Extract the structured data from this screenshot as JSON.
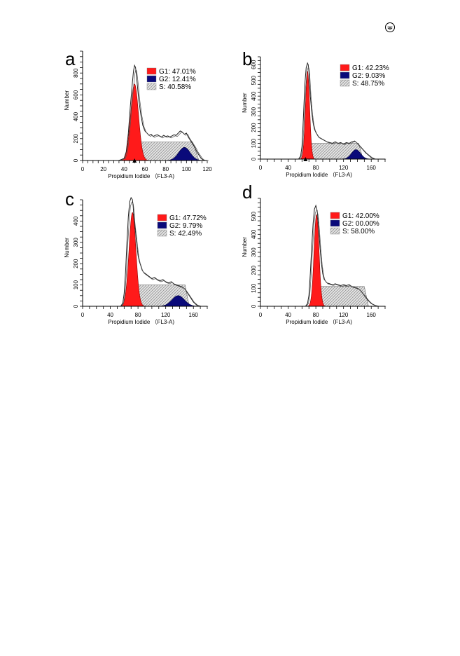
{
  "chart_data": [
    {
      "panel_label": "a",
      "type": "area",
      "xlabel": "Propidium Iodide （FL3-A)",
      "ylabel": "Number",
      "xlim": [
        0,
        120
      ],
      "ylim": [
        0,
        1000
      ],
      "x_ticks": [
        0,
        20,
        40,
        60,
        80,
        100,
        120
      ],
      "y_ticks": [
        0,
        200,
        400,
        600,
        800
      ],
      "legend": [
        {
          "name": "G1",
          "text": "G1: 47.01%",
          "value": 47.01,
          "color": "#ff1a1a"
        },
        {
          "name": "G2",
          "text": "G2: 12.41%",
          "value": 12.41,
          "color": "#0a0a7a"
        },
        {
          "name": "S",
          "text": "S: 40.58%",
          "value": 40.58,
          "color": "hatch"
        }
      ],
      "marker_x": 50,
      "total": {
        "x": [
          0,
          35,
          40,
          42,
          44,
          46,
          48,
          49,
          50,
          51,
          52,
          54,
          56,
          58,
          60,
          62,
          64,
          66,
          68,
          70,
          72,
          74,
          76,
          78,
          80,
          82,
          84,
          86,
          88,
          90,
          92,
          94,
          96,
          98,
          100,
          102,
          104,
          106,
          108,
          110,
          112,
          114,
          116,
          118,
          120
        ],
        "y": [
          0,
          0,
          20,
          80,
          250,
          500,
          720,
          820,
          870,
          850,
          760,
          560,
          420,
          320,
          270,
          250,
          230,
          240,
          220,
          230,
          235,
          225,
          215,
          230,
          220,
          225,
          215,
          225,
          235,
          230,
          250,
          270,
          260,
          240,
          250,
          210,
          180,
          150,
          120,
          80,
          50,
          20,
          5,
          0,
          0
        ]
      },
      "g1": {
        "center": 50,
        "sd": 3.8,
        "height": 700
      },
      "g2": {
        "center": 98,
        "sd": 5.5,
        "height": 120
      },
      "s": {
        "start": 52,
        "end": 106,
        "level": 170
      }
    },
    {
      "panel_label": "b",
      "type": "area",
      "xlabel": "Propidium Iodide （FL3-A)",
      "ylabel": "Number",
      "xlim": [
        0,
        180
      ],
      "ylim": [
        0,
        650
      ],
      "x_ticks": [
        0,
        40,
        80,
        120,
        160
      ],
      "y_ticks": [
        0,
        100,
        200,
        300,
        400,
        500,
        600
      ],
      "legend": [
        {
          "name": "G1",
          "text": "G1: 42.23%",
          "value": 42.23,
          "color": "#ff1a1a"
        },
        {
          "name": "G2",
          "text": "G2: 9.03%",
          "value": 9.03,
          "color": "#0a0a7a"
        },
        {
          "name": "S",
          "text": "S: 48.75%",
          "value": 48.75,
          "color": "hatch"
        }
      ],
      "marker_x": 65,
      "total": {
        "x": [
          0,
          55,
          58,
          60,
          62,
          64,
          66,
          68,
          69,
          70,
          71,
          72,
          74,
          76,
          78,
          80,
          84,
          88,
          92,
          96,
          100,
          104,
          108,
          112,
          116,
          120,
          124,
          128,
          132,
          136,
          140,
          144,
          148,
          152,
          156,
          160,
          165,
          180
        ],
        "y": [
          0,
          0,
          20,
          80,
          260,
          470,
          580,
          610,
          600,
          560,
          480,
          400,
          300,
          230,
          190,
          170,
          140,
          130,
          120,
          110,
          105,
          100,
          110,
          100,
          105,
          95,
          105,
          100,
          110,
          115,
          100,
          80,
          60,
          40,
          25,
          10,
          0,
          0
        ]
      },
      "g1": {
        "center": 68,
        "sd": 3.0,
        "height": 560
      },
      "g2": {
        "center": 138,
        "sd": 6.5,
        "height": 60
      },
      "s": {
        "start": 70,
        "end": 142,
        "level": 100
      }
    },
    {
      "panel_label": "c",
      "type": "area",
      "xlabel": "Propidium Iodide （FL3-A)",
      "ylabel": "Number",
      "xlim": [
        0,
        180
      ],
      "ylim": [
        0,
        500
      ],
      "x_ticks": [
        0,
        40,
        80,
        120,
        160
      ],
      "y_ticks": [
        0,
        100,
        200,
        300,
        400
      ],
      "legend": [
        {
          "name": "G1",
          "text": "G1: 47.72%",
          "value": 47.72,
          "color": "#ff1a1a"
        },
        {
          "name": "G2",
          "text": "G2: 9.79%",
          "value": 9.79,
          "color": "#0a0a7a"
        },
        {
          "name": "S",
          "text": "S: 42.49%",
          "value": 42.49,
          "color": "hatch"
        }
      ],
      "marker_x": null,
      "total": {
        "x": [
          0,
          55,
          58,
          60,
          62,
          64,
          66,
          68,
          70,
          72,
          73,
          74,
          76,
          78,
          80,
          82,
          84,
          86,
          88,
          92,
          96,
          100,
          104,
          108,
          112,
          116,
          120,
          124,
          128,
          132,
          136,
          140,
          144,
          148,
          152,
          156,
          160,
          165,
          170,
          180
        ],
        "y": [
          0,
          0,
          15,
          60,
          160,
          300,
          420,
          490,
          510,
          500,
          470,
          420,
          360,
          300,
          240,
          210,
          190,
          170,
          160,
          150,
          140,
          130,
          135,
          125,
          120,
          125,
          115,
          110,
          115,
          105,
          100,
          95,
          90,
          80,
          60,
          40,
          20,
          5,
          0,
          0
        ]
      },
      "g1": {
        "center": 72,
        "sd": 5.0,
        "height": 440
      },
      "g2": {
        "center": 138,
        "sd": 9.0,
        "height": 50
      },
      "s": {
        "start": 74,
        "end": 148,
        "level": 100
      }
    },
    {
      "panel_label": "d",
      "type": "area",
      "xlabel": "Propidium Iodide （FL3-A)",
      "ylabel": "Number",
      "xlim": [
        0,
        180
      ],
      "ylim": [
        0,
        600
      ],
      "x_ticks": [
        0,
        40,
        80,
        120,
        160
      ],
      "y_ticks": [
        0,
        100,
        200,
        300,
        400,
        500
      ],
      "legend": [
        {
          "name": "G1",
          "text": "G1: 42.00%",
          "value": 42.0,
          "color": "#ff1a1a"
        },
        {
          "name": "G2",
          "text": "G2: 00.00%",
          "value": 0.0,
          "color": "#0a0a7a"
        },
        {
          "name": "S",
          "text": "S: 58.00%",
          "value": 58.0,
          "color": "hatch"
        }
      ],
      "marker_x": null,
      "total": {
        "x": [
          0,
          65,
          68,
          70,
          72,
          74,
          76,
          78,
          80,
          82,
          84,
          86,
          88,
          90,
          92,
          96,
          100,
          104,
          108,
          112,
          116,
          120,
          124,
          128,
          132,
          136,
          140,
          144,
          148,
          152,
          156,
          160,
          165,
          170,
          180
        ],
        "y": [
          0,
          0,
          15,
          60,
          180,
          330,
          460,
          540,
          560,
          530,
          440,
          330,
          240,
          180,
          150,
          130,
          125,
          120,
          125,
          120,
          115,
          120,
          115,
          120,
          110,
          105,
          100,
          90,
          70,
          50,
          30,
          15,
          5,
          0,
          0
        ]
      },
      "g1": {
        "center": 81,
        "sd": 3.6,
        "height": 510
      },
      "g2": {
        "center": 140,
        "sd": 8.0,
        "height": 0
      },
      "s": {
        "start": 82,
        "end": 150,
        "level": 110
      }
    }
  ]
}
